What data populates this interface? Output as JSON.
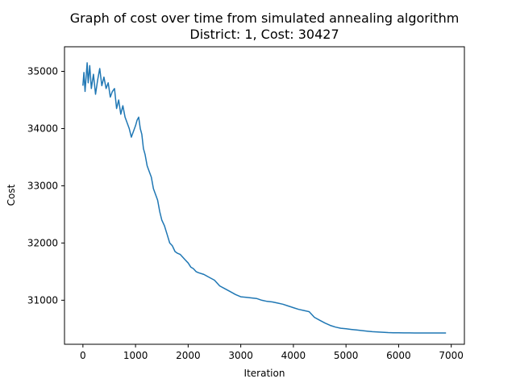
{
  "chart_data": {
    "type": "line",
    "title": "Graph of cost over time from simulated annealing algorithm",
    "subtitle": "District: 1, Cost: 30427",
    "xlabel": "Iteration",
    "ylabel": "Cost",
    "xlim": [
      -350,
      7250
    ],
    "ylim": [
      30230,
      35430
    ],
    "xticks": [
      0,
      1000,
      2000,
      3000,
      4000,
      5000,
      6000,
      7000
    ],
    "xtick_labels": [
      "0",
      "1000",
      "2000",
      "3000",
      "4000",
      "5000",
      "6000",
      "7000"
    ],
    "yticks": [
      31000,
      32000,
      33000,
      34000,
      35000
    ],
    "ytick_labels": [
      "31000",
      "32000",
      "33000",
      "34000",
      "35000"
    ],
    "grid": false,
    "series": [
      {
        "color": "#1f77b4",
        "x": [
          0,
          20,
          40,
          60,
          80,
          100,
          130,
          160,
          200,
          240,
          280,
          320,
          360,
          400,
          440,
          480,
          520,
          560,
          600,
          640,
          680,
          720,
          760,
          800,
          840,
          880,
          920,
          960,
          1000,
          1030,
          1060,
          1090,
          1120,
          1150,
          1180,
          1220,
          1260,
          1300,
          1340,
          1380,
          1420,
          1460,
          1500,
          1550,
          1600,
          1650,
          1700,
          1750,
          1800,
          1850,
          1900,
          1950,
          2000,
          2050,
          2100,
          2150,
          2200,
          2300,
          2400,
          2500,
          2600,
          2700,
          2800,
          2900,
          3000,
          3100,
          3200,
          3300,
          3400,
          3500,
          3600,
          3700,
          3800,
          3900,
          4000,
          4100,
          4200,
          4300,
          4400,
          4500,
          4600,
          4700,
          4800,
          4900,
          5000,
          5100,
          5200,
          5300,
          5400,
          5500,
          5600,
          5700,
          5800,
          5900,
          6000,
          6100,
          6200,
          6300,
          6400,
          6500,
          6600,
          6700,
          6800,
          6900
        ],
        "y": [
          34750,
          34980,
          34650,
          34900,
          35150,
          34800,
          35100,
          34700,
          34950,
          34600,
          34850,
          35050,
          34750,
          34900,
          34700,
          34800,
          34550,
          34650,
          34700,
          34350,
          34500,
          34250,
          34400,
          34200,
          34100,
          34000,
          33850,
          33950,
          34050,
          34150,
          34200,
          34000,
          33900,
          33650,
          33550,
          33350,
          33250,
          33150,
          32950,
          32850,
          32750,
          32550,
          32400,
          32300,
          32150,
          32000,
          31950,
          31850,
          31820,
          31800,
          31750,
          31700,
          31650,
          31580,
          31550,
          31500,
          31480,
          31450,
          31400,
          31350,
          31250,
          31200,
          31150,
          31100,
          31060,
          31050,
          31040,
          31030,
          31000,
          30980,
          30970,
          30950,
          30930,
          30900,
          30870,
          30840,
          30820,
          30800,
          30700,
          30650,
          30600,
          30560,
          30530,
          30510,
          30500,
          30490,
          30480,
          30470,
          30460,
          30450,
          30445,
          30440,
          30435,
          30432,
          30430,
          30429,
          30428,
          30427,
          30427,
          30427,
          30427,
          30427,
          30427,
          30427
        ]
      }
    ]
  }
}
